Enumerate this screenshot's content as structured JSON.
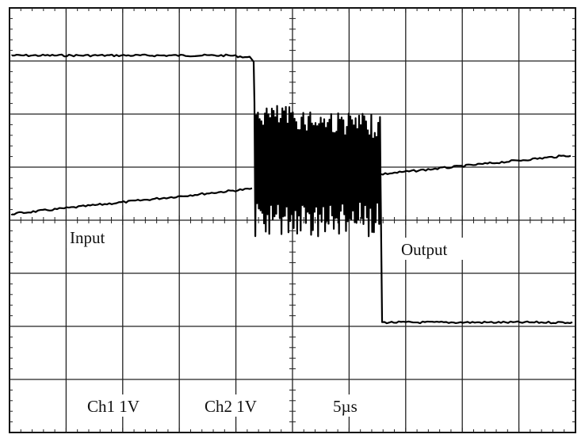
{
  "labels": {
    "input": "Input",
    "output": "Output",
    "ch1": "Ch1 1V",
    "ch2": "Ch2 1V",
    "timebase": "5µs"
  }
}
